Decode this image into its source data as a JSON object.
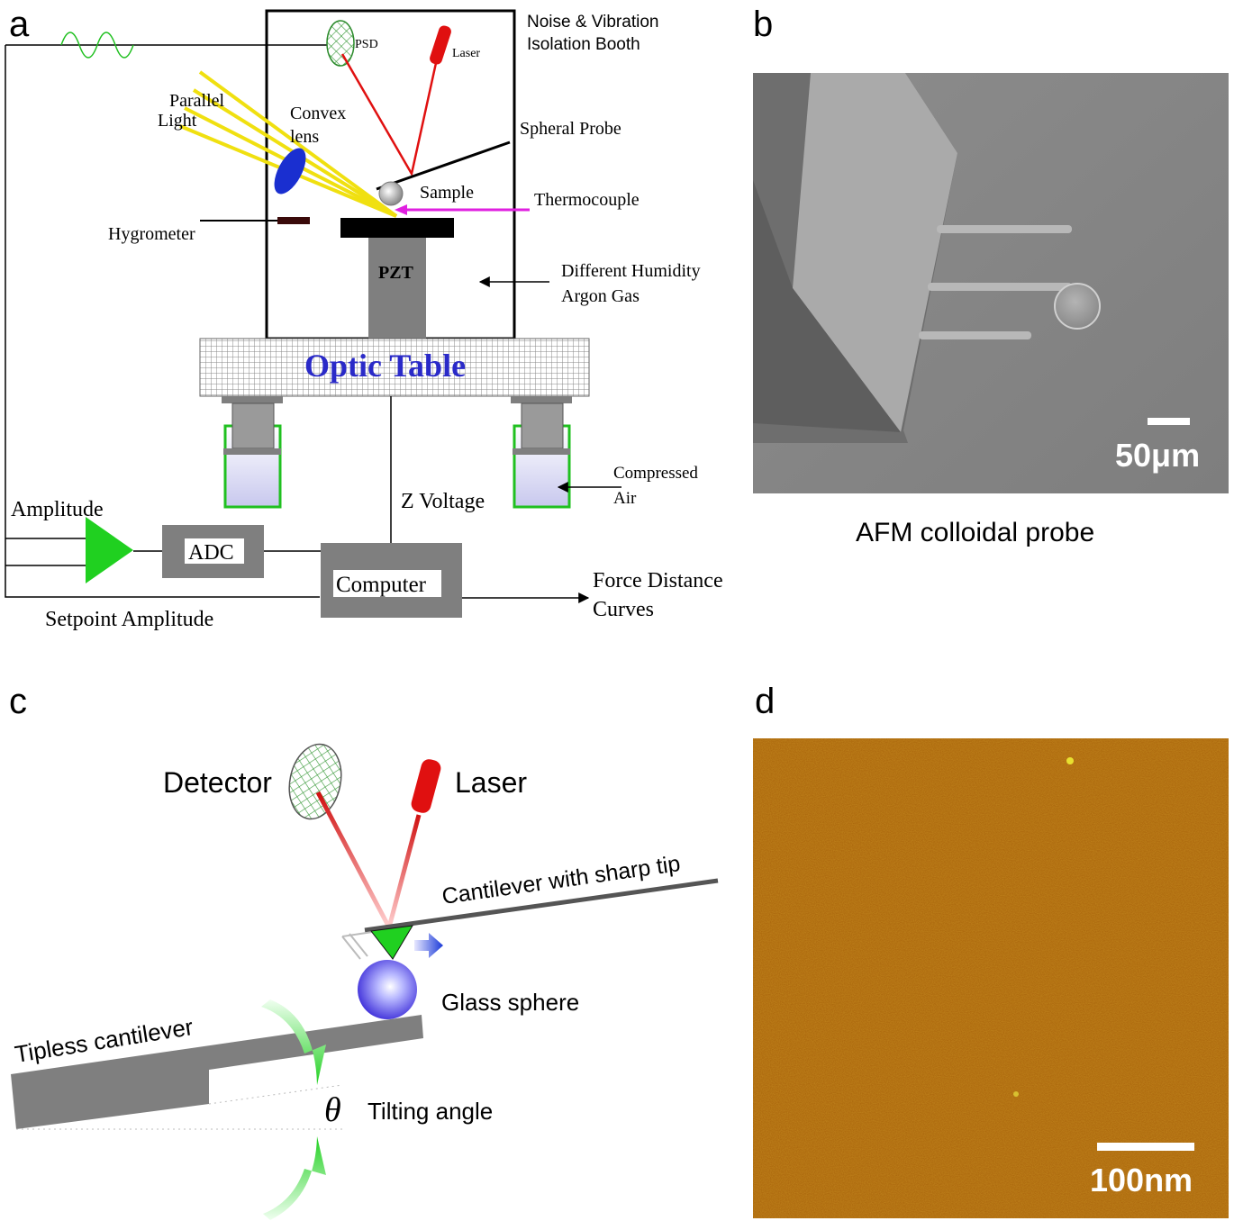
{
  "panel_a": {
    "label": "a",
    "booth": [
      "Noise & Vibration",
      "Isolation Booth"
    ],
    "psd": "PSD",
    "laser": "Laser",
    "parallel_light": [
      "Parallel",
      "Light"
    ],
    "convex_lens": [
      "Convex",
      "lens"
    ],
    "spheral_probe": "Spheral  Probe",
    "sample": "Sample",
    "thermocouple": "Thermocouple",
    "hygrometer": "Hygrometer",
    "pzt": "PZT",
    "gas": [
      "Different Humidity",
      "Argon Gas"
    ],
    "optic_table": "Optic Table",
    "compressed_air": [
      "Compressed",
      "Air"
    ],
    "z_voltage": "Z Voltage",
    "amplitude": "Amplitude",
    "adc": "ADC",
    "computer": "Computer",
    "force_distance": [
      "Force Distance",
      "Curves"
    ],
    "setpoint": "Setpoint Amplitude"
  },
  "panel_b": {
    "label": "b",
    "scale": "50μm",
    "caption": "AFM colloidal probe"
  },
  "panel_c": {
    "label": "c",
    "detector": "Detector",
    "laser": "Laser",
    "cantilever_sharp": "Cantilever with sharp tip",
    "glass_sphere": "Glass sphere",
    "tipless": "Tipless cantilever",
    "theta": "θ",
    "tilting": "Tilting angle"
  },
  "panel_d": {
    "label": "d",
    "scale": "100nm"
  },
  "colors": {
    "gray": "#7f7f7f",
    "laser_red": "#e01010",
    "lens_blue": "#1a2fd0",
    "green": "#10c010",
    "magenta": "#e020e0",
    "yellow": "#f0e010",
    "afm_brown": "#a8620a",
    "sem_gray": "#8a8a8a"
  }
}
